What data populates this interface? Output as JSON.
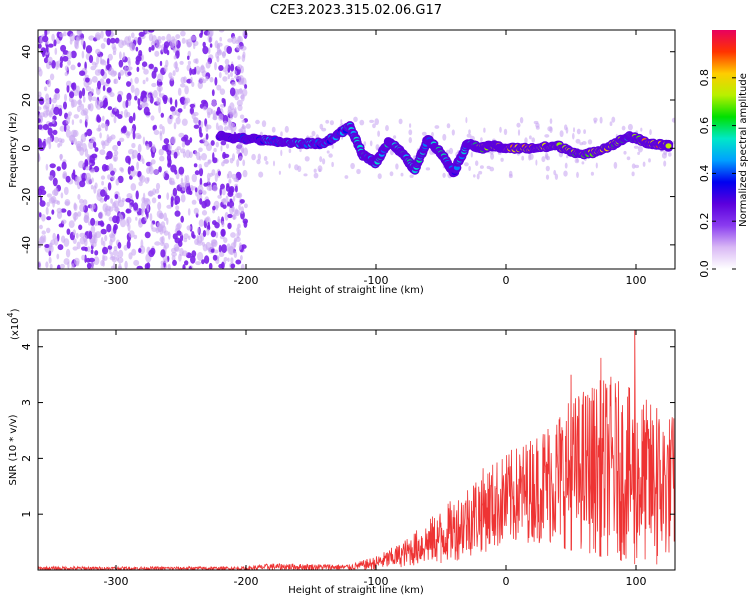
{
  "figure": {
    "title": "C2E3.2023.315.02.06.G17"
  },
  "colors": {
    "snr_line": "#ee3333",
    "axis": "#000000",
    "colormap": [
      "#ffffff",
      "#d9b8f5",
      "#8a3cf0",
      "#5c00dd",
      "#0000f0",
      "#00a0ff",
      "#00e8c8",
      "#00e000",
      "#b8f000",
      "#ffcc00",
      "#ff3300",
      "#e8005e"
    ]
  },
  "chart_data": [
    {
      "type": "heatmap",
      "title": "C2E3.2023.315.02.06.G17",
      "xlabel": "Height of straight line (km)",
      "ylabel": "Frequency (Hz)",
      "colorbar_label": "Normalized spectral amplitude",
      "xlim": [
        -360,
        130
      ],
      "ylim": [
        -50,
        49
      ],
      "x_ticks": [
        -300,
        -200,
        -100,
        0,
        100
      ],
      "y_ticks": [
        -40,
        -20,
        0,
        20,
        40
      ],
      "colorbar_range": [
        0.0,
        1.0
      ],
      "colorbar_ticks": [
        0.0,
        0.2,
        0.4,
        0.6,
        0.8
      ],
      "signal_track": [
        {
          "x": -220,
          "y": 5,
          "amp": 0.25
        },
        {
          "x": -200,
          "y": 4,
          "amp": 0.35
        },
        {
          "x": -180,
          "y": 3,
          "amp": 0.45
        },
        {
          "x": -160,
          "y": 2,
          "amp": 0.45
        },
        {
          "x": -140,
          "y": 2,
          "amp": 0.4
        },
        {
          "x": -120,
          "y": 9,
          "amp": 0.45
        },
        {
          "x": -110,
          "y": -3,
          "amp": 0.5
        },
        {
          "x": -100,
          "y": -6,
          "amp": 0.5
        },
        {
          "x": -90,
          "y": 3,
          "amp": 0.5
        },
        {
          "x": -80,
          "y": -2,
          "amp": 0.55
        },
        {
          "x": -70,
          "y": -9,
          "amp": 0.55
        },
        {
          "x": -60,
          "y": 4,
          "amp": 0.45
        },
        {
          "x": -50,
          "y": -2,
          "amp": 0.55
        },
        {
          "x": -40,
          "y": -10,
          "amp": 0.4
        },
        {
          "x": -30,
          "y": 2,
          "amp": 0.5
        },
        {
          "x": -20,
          "y": 0,
          "amp": 0.7
        },
        {
          "x": -10,
          "y": 1,
          "amp": 0.75
        },
        {
          "x": 0,
          "y": 0,
          "amp": 0.8
        },
        {
          "x": 20,
          "y": 0,
          "amp": 0.8
        },
        {
          "x": 40,
          "y": 1,
          "amp": 0.75
        },
        {
          "x": 60,
          "y": -3,
          "amp": 0.7
        },
        {
          "x": 80,
          "y": 1,
          "amp": 0.75
        },
        {
          "x": 95,
          "y": 5,
          "amp": 0.6
        },
        {
          "x": 110,
          "y": 2,
          "amp": 0.85
        },
        {
          "x": 125,
          "y": 1,
          "amp": 0.8
        }
      ]
    },
    {
      "type": "line",
      "xlabel": "Height of straight line (km)",
      "ylabel": "SNR (10 * v/v)",
      "y_scale_label": "(x10",
      "y_scale_exponent": "4",
      "y_scale_close": ")",
      "xlim": [
        -360,
        130
      ],
      "ylim": [
        0,
        4.3
      ],
      "x_ticks": [
        -300,
        -200,
        -100,
        0,
        100
      ],
      "y_ticks": [
        1,
        2,
        3,
        4
      ],
      "series": [
        {
          "envelope": [
            {
              "x": -360,
              "low": 0.0,
              "high": 0.06
            },
            {
              "x": -200,
              "low": 0.0,
              "high": 0.06
            },
            {
              "x": -180,
              "low": 0.0,
              "high": 0.12
            },
            {
              "x": -120,
              "low": 0.0,
              "high": 0.1
            },
            {
              "x": -100,
              "low": 0.0,
              "high": 0.25
            },
            {
              "x": -80,
              "low": 0.05,
              "high": 0.5
            },
            {
              "x": -60,
              "low": 0.1,
              "high": 0.9
            },
            {
              "x": -40,
              "low": 0.15,
              "high": 1.3
            },
            {
              "x": -20,
              "low": 0.3,
              "high": 1.8
            },
            {
              "x": 0,
              "low": 0.4,
              "high": 2.1
            },
            {
              "x": 20,
              "low": 0.5,
              "high": 2.4
            },
            {
              "x": 40,
              "low": 0.4,
              "high": 2.9
            },
            {
              "x": 60,
              "low": 0.3,
              "high": 3.3
            },
            {
              "x": 80,
              "low": 0.2,
              "high": 3.5
            },
            {
              "x": 100,
              "low": 0.1,
              "high": 3.2
            },
            {
              "x": 120,
              "low": 0.1,
              "high": 2.9
            },
            {
              "x": 130,
              "low": 0.3,
              "high": 2.8
            }
          ],
          "peaks": [
            {
              "x": -50,
              "y": 0.85
            },
            {
              "x": 50,
              "y": 3.5
            },
            {
              "x": 73,
              "y": 3.8
            },
            {
              "x": 99,
              "y": 4.3
            },
            {
              "x": 116,
              "y": 2.9
            }
          ]
        }
      ]
    }
  ]
}
